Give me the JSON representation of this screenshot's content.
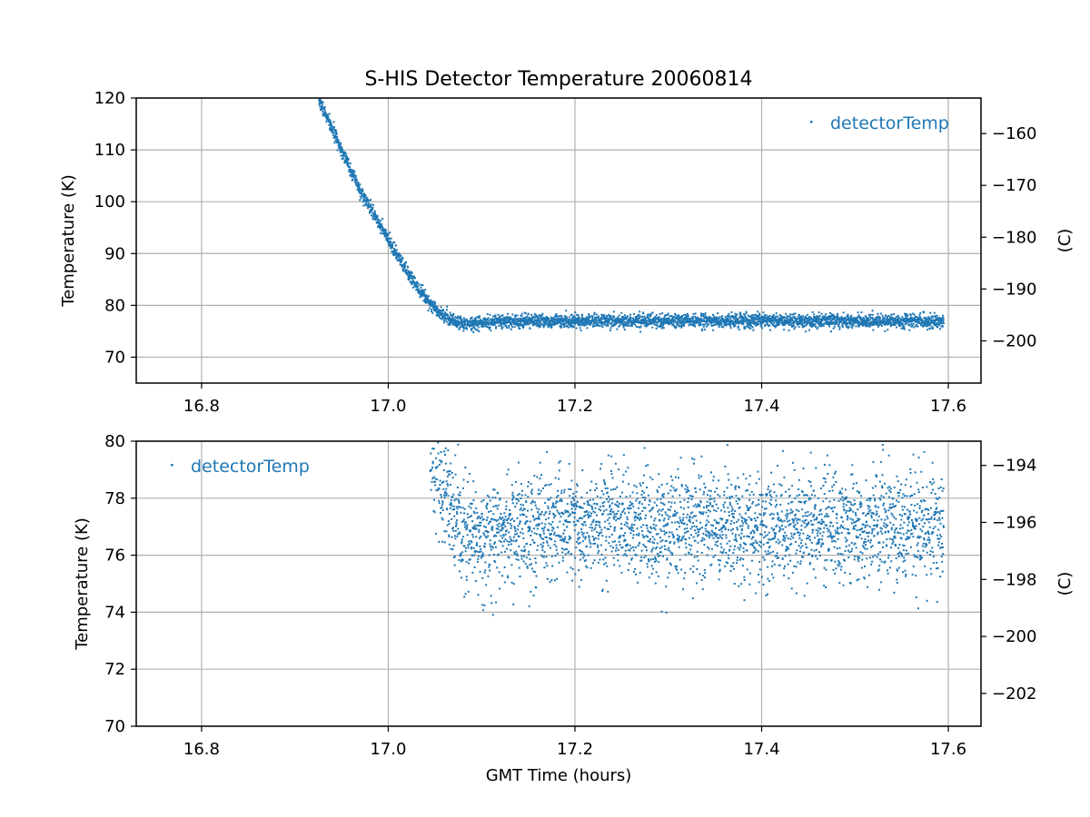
{
  "title": "S-HIS Detector Temperature 20060814",
  "colors": {
    "series": "#1f77b4",
    "grid": "#b0b0b0",
    "axis": "#000000"
  },
  "chart_data": [
    {
      "type": "scatter",
      "grid": true,
      "legend": {
        "entry": "detectorTemp",
        "placement": "upper-right"
      },
      "xlabel": "",
      "ylabel": "Temperature (K)",
      "y2label": "(C)",
      "xlim": [
        16.73,
        17.635
      ],
      "ylim": [
        65,
        120
      ],
      "y2lim": [
        -208.15,
        -153.15
      ],
      "xticks": [
        "16.8",
        "17.0",
        "17.2",
        "17.4",
        "17.6"
      ],
      "yticks": [
        "70",
        "80",
        "90",
        "100",
        "110",
        "120"
      ],
      "y2ticks": [
        "−160",
        "−170",
        "−180",
        "−190",
        "−200"
      ],
      "series": [
        {
          "name": "detectorTemp",
          "x": [
            16.925,
            16.94,
            16.95,
            16.96,
            16.97,
            16.98,
            16.99,
            17.0,
            17.01,
            17.02,
            17.03,
            17.04,
            17.05,
            17.06,
            17.07,
            17.08,
            17.09,
            17.1,
            17.15,
            17.2,
            17.25,
            17.3,
            17.35,
            17.4,
            17.45,
            17.5,
            17.55,
            17.595
          ],
          "y": [
            120,
            114,
            110,
            106,
            102,
            99,
            96,
            92.5,
            89.5,
            86.5,
            84,
            81.5,
            79.5,
            78,
            77,
            76.5,
            76.5,
            76.6,
            77,
            77,
            77,
            77,
            77,
            77,
            77,
            77,
            77,
            77
          ]
        }
      ]
    },
    {
      "type": "scatter",
      "grid": true,
      "legend": {
        "entry": "detectorTemp",
        "placement": "upper-left"
      },
      "xlabel": "GMT Time (hours)",
      "ylabel": "Temperature (K)",
      "y2label": "(C)",
      "xlim": [
        16.73,
        17.635
      ],
      "ylim": [
        70,
        80
      ],
      "y2lim": [
        -203.15,
        -193.15
      ],
      "xticks": [
        "16.8",
        "17.0",
        "17.2",
        "17.4",
        "17.6"
      ],
      "yticks": [
        "70",
        "72",
        "74",
        "76",
        "78",
        "80"
      ],
      "y2ticks": [
        "−194",
        "−196",
        "−198",
        "−200",
        "−202"
      ],
      "series": [
        {
          "name": "detectorTemp",
          "x": [
            17.045,
            17.05,
            17.055,
            17.06,
            17.065,
            17.07,
            17.08,
            17.09,
            17.1,
            17.12,
            17.15,
            17.2,
            17.25,
            17.3,
            17.35,
            17.4,
            17.45,
            17.5,
            17.55,
            17.595
          ],
          "y": [
            80,
            79.5,
            78.8,
            78.2,
            77.6,
            77.2,
            76.7,
            76.5,
            76.6,
            76.8,
            77,
            77,
            77,
            77,
            77,
            77,
            77,
            77,
            77,
            77
          ]
        }
      ]
    }
  ]
}
